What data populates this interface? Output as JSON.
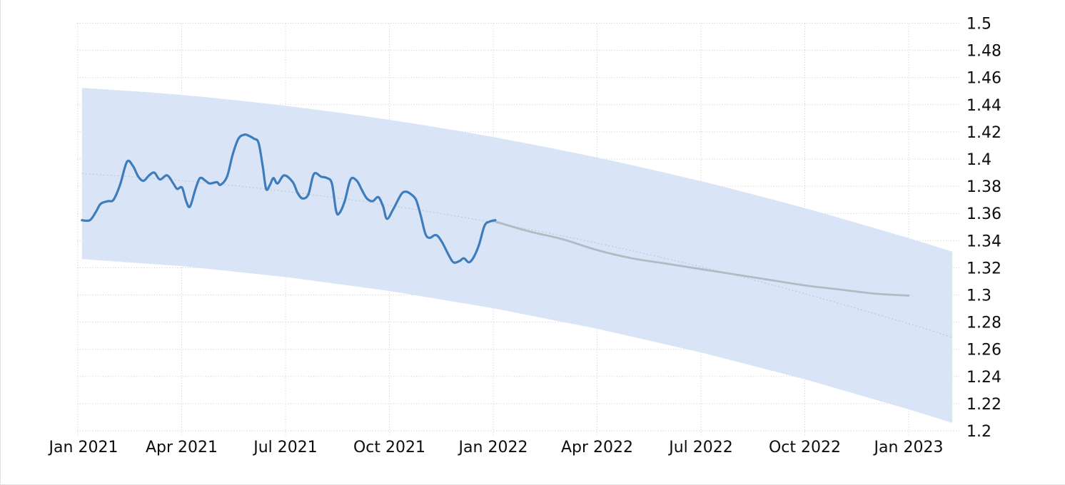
{
  "chart_data": {
    "type": "line",
    "title": "",
    "xlabel": "",
    "ylabel": "",
    "x_tick_labels": [
      "Jan 2021",
      "Apr 2021",
      "Jul 2021",
      "Oct 2021",
      "Jan 2022",
      "Apr 2022",
      "Jul 2022",
      "Oct 2022",
      "Jan 2023"
    ],
    "y_tick_labels": [
      "1.5",
      "1.48",
      "1.46",
      "1.44",
      "1.42",
      "1.4",
      "1.38",
      "1.36",
      "1.34",
      "1.32",
      "1.3",
      "1.28",
      "1.26",
      "1.24",
      "1.22",
      "1.2"
    ],
    "ylim": [
      1.2,
      1.5
    ],
    "xlim_months": [
      0,
      25.26
    ],
    "grid": "dotted",
    "legend": "none",
    "colors": {
      "history_line": "#3f7cbb",
      "forecast_line": "#b3bac2",
      "band_fill": "#d9e5f7",
      "band_midline": "#c3cad4",
      "gridline": "#c9c9c9",
      "tick_text": "#0d0d0d"
    },
    "series": [
      {
        "name": "history",
        "points": [
          [
            0.12,
            1.355
          ],
          [
            0.35,
            1.355
          ],
          [
            0.52,
            1.361
          ],
          [
            0.66,
            1.367
          ],
          [
            0.87,
            1.369
          ],
          [
            1.03,
            1.37
          ],
          [
            1.22,
            1.381
          ],
          [
            1.42,
            1.398
          ],
          [
            1.59,
            1.395
          ],
          [
            1.75,
            1.387
          ],
          [
            1.9,
            1.384
          ],
          [
            2.06,
            1.388
          ],
          [
            2.21,
            1.39
          ],
          [
            2.37,
            1.385
          ],
          [
            2.58,
            1.388
          ],
          [
            2.76,
            1.382
          ],
          [
            2.87,
            1.378
          ],
          [
            3.01,
            1.379
          ],
          [
            3.13,
            1.369
          ],
          [
            3.24,
            1.365
          ],
          [
            3.4,
            1.378
          ],
          [
            3.53,
            1.386
          ],
          [
            3.69,
            1.384
          ],
          [
            3.81,
            1.382
          ],
          [
            4.02,
            1.383
          ],
          [
            4.12,
            1.381
          ],
          [
            4.31,
            1.387
          ],
          [
            4.47,
            1.403
          ],
          [
            4.64,
            1.415
          ],
          [
            4.82,
            1.418
          ],
          [
            4.95,
            1.417
          ],
          [
            5.09,
            1.415
          ],
          [
            5.22,
            1.412
          ],
          [
            5.34,
            1.395
          ],
          [
            5.44,
            1.378
          ],
          [
            5.55,
            1.381
          ],
          [
            5.65,
            1.386
          ],
          [
            5.77,
            1.382
          ],
          [
            5.96,
            1.388
          ],
          [
            6.21,
            1.383
          ],
          [
            6.35,
            1.375
          ],
          [
            6.49,
            1.371
          ],
          [
            6.66,
            1.374
          ],
          [
            6.82,
            1.389
          ],
          [
            7.03,
            1.387
          ],
          [
            7.2,
            1.386
          ],
          [
            7.34,
            1.382
          ],
          [
            7.46,
            1.362
          ],
          [
            7.55,
            1.36
          ],
          [
            7.71,
            1.369
          ],
          [
            7.88,
            1.385
          ],
          [
            8.06,
            1.384
          ],
          [
            8.21,
            1.377
          ],
          [
            8.35,
            1.371
          ],
          [
            8.52,
            1.369
          ],
          [
            8.68,
            1.372
          ],
          [
            8.82,
            1.365
          ],
          [
            8.93,
            1.356
          ],
          [
            9.11,
            1.363
          ],
          [
            9.34,
            1.374
          ],
          [
            9.48,
            1.376
          ],
          [
            9.63,
            1.374
          ],
          [
            9.77,
            1.37
          ],
          [
            9.9,
            1.359
          ],
          [
            10.04,
            1.345
          ],
          [
            10.16,
            1.342
          ],
          [
            10.31,
            1.344
          ],
          [
            10.41,
            1.343
          ],
          [
            10.54,
            1.338
          ],
          [
            10.7,
            1.33
          ],
          [
            10.85,
            1.324
          ],
          [
            11.03,
            1.325
          ],
          [
            11.15,
            1.327
          ],
          [
            11.3,
            1.324
          ],
          [
            11.44,
            1.328
          ],
          [
            11.59,
            1.337
          ],
          [
            11.75,
            1.351
          ],
          [
            11.9,
            1.354
          ],
          [
            12.06,
            1.355
          ]
        ]
      },
      {
        "name": "forecast",
        "points": [
          [
            12.06,
            1.354
          ],
          [
            13,
            1.347
          ],
          [
            14,
            1.341
          ],
          [
            15,
            1.333
          ],
          [
            16,
            1.327
          ],
          [
            17,
            1.323
          ],
          [
            18,
            1.319
          ],
          [
            19,
            1.315
          ],
          [
            20,
            1.311
          ],
          [
            21,
            1.307
          ],
          [
            22,
            1.304
          ],
          [
            23,
            1.301
          ],
          [
            24,
            1.2995
          ]
        ]
      },
      {
        "name": "band_midline",
        "points": [
          [
            0.12,
            1.3894
          ],
          [
            3,
            1.3842
          ],
          [
            6,
            1.3762
          ],
          [
            9,
            1.3659
          ],
          [
            12,
            1.3532
          ],
          [
            15,
            1.3381
          ],
          [
            18,
            1.3207
          ],
          [
            21,
            1.3009
          ],
          [
            24,
            1.2788
          ],
          [
            25.26,
            1.2688
          ]
        ]
      }
    ],
    "band": {
      "name": "forecast_confidence_band",
      "points_top_bottom": [
        [
          0.12,
          1.4524,
          1.3264
        ],
        [
          3,
          1.4472,
          1.3212
        ],
        [
          6,
          1.4392,
          1.3132
        ],
        [
          9,
          1.4289,
          1.3029
        ],
        [
          12,
          1.4162,
          1.2902
        ],
        [
          15,
          1.4011,
          1.2751
        ],
        [
          18,
          1.3837,
          1.2577
        ],
        [
          21,
          1.3639,
          1.2379
        ],
        [
          24,
          1.3418,
          1.2158
        ],
        [
          25.26,
          1.3318,
          1.2058
        ]
      ]
    }
  }
}
